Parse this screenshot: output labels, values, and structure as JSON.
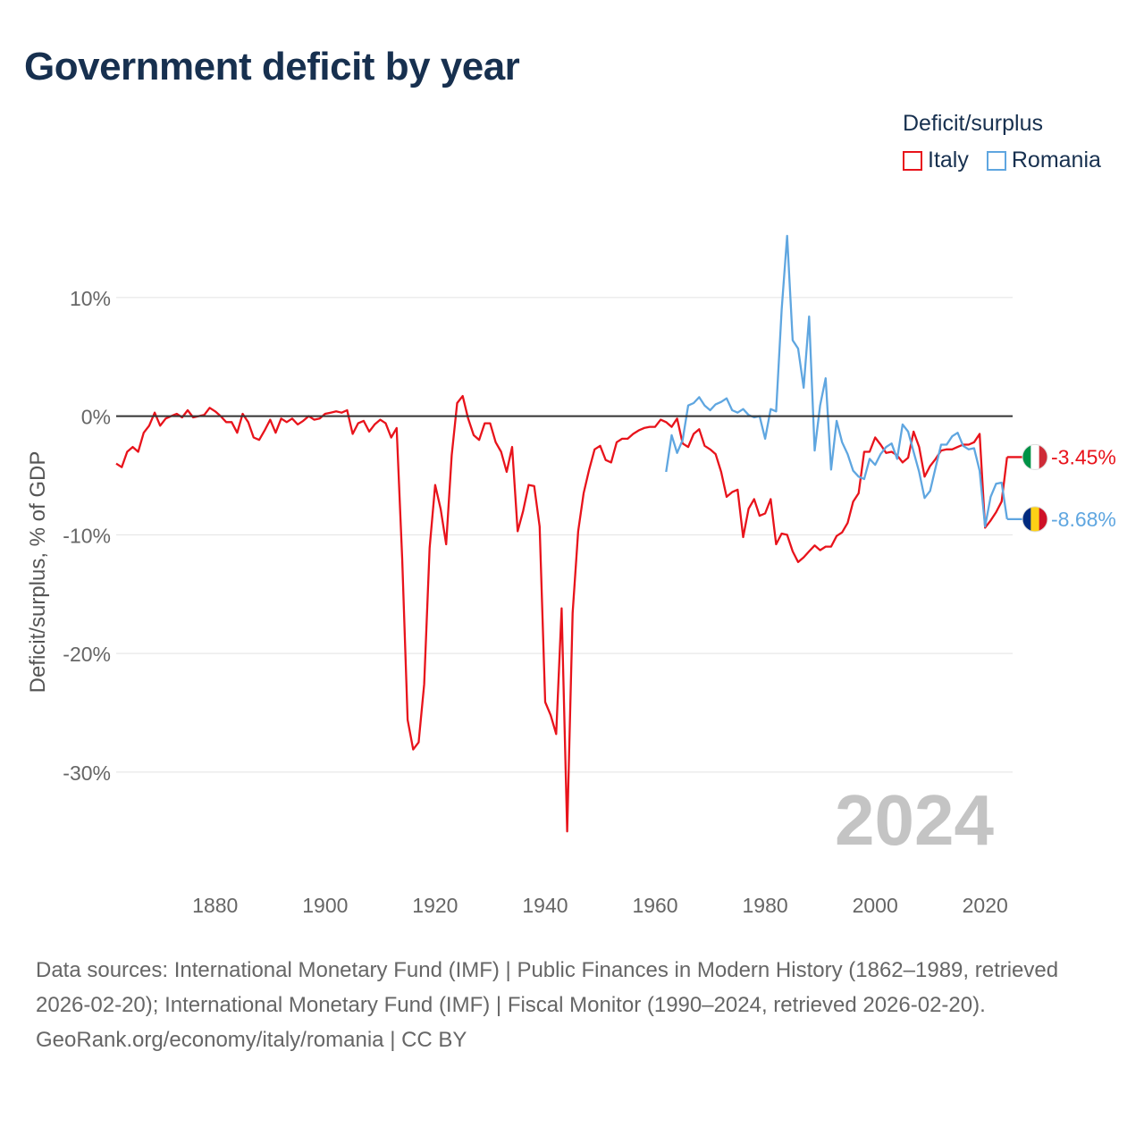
{
  "title": "Government deficit by year",
  "legend": {
    "title": "Deficit/surplus",
    "items": [
      {
        "label": "Italy",
        "color": "#e8131b"
      },
      {
        "label": "Romania",
        "color": "#5fa6e0"
      }
    ]
  },
  "footer": {
    "sources": "Data sources: International Monetary Fund (IMF) | Public Finances in Modern History (1862–1989, retrieved 2026-02-20); International Monetary Fund (IMF) | Fiscal Monitor (1990–2024, retrieved 2026-02-20).",
    "credit": "GeoRank.org/economy/italy/romania | CC BY"
  },
  "chart_data": {
    "type": "line",
    "title": "Government deficit by year",
    "xlabel": "",
    "ylabel": "Deficit/surplus, % of GDP",
    "xlim": [
      1862,
      2025
    ],
    "ylim": [
      -38,
      17
    ],
    "x_ticks": [
      1880,
      1900,
      1920,
      1940,
      1960,
      1980,
      2000,
      2020
    ],
    "y_ticks": [
      10,
      0,
      -10,
      -20,
      -30
    ],
    "y_tick_labels": [
      "10%",
      "0%",
      "-10%",
      "-20%",
      "-30%"
    ],
    "year_label": "2024",
    "end_labels": [
      {
        "series": "Italy",
        "text": "-3.45%",
        "value": -3.45,
        "color": "#e8131b"
      },
      {
        "series": "Romania",
        "text": "-8.68%",
        "value": -8.68,
        "color": "#5fa6e0"
      }
    ],
    "series": [
      {
        "name": "Italy",
        "color": "#e8131b",
        "points": [
          [
            1862,
            -4.0
          ],
          [
            1863,
            -4.3
          ],
          [
            1864,
            -3.0
          ],
          [
            1865,
            -2.6
          ],
          [
            1866,
            -3.0
          ],
          [
            1867,
            -1.4
          ],
          [
            1868,
            -0.8
          ],
          [
            1869,
            0.3
          ],
          [
            1870,
            -0.8
          ],
          [
            1871,
            -0.2
          ],
          [
            1872,
            0.0
          ],
          [
            1873,
            0.2
          ],
          [
            1874,
            -0.1
          ],
          [
            1875,
            0.5
          ],
          [
            1876,
            -0.1
          ],
          [
            1877,
            0.0
          ],
          [
            1878,
            0.1
          ],
          [
            1879,
            0.7
          ],
          [
            1880,
            0.4
          ],
          [
            1881,
            0.0
          ],
          [
            1882,
            -0.5
          ],
          [
            1883,
            -0.5
          ],
          [
            1884,
            -1.4
          ],
          [
            1885,
            0.2
          ],
          [
            1886,
            -0.5
          ],
          [
            1887,
            -1.8
          ],
          [
            1888,
            -2.0
          ],
          [
            1889,
            -1.2
          ],
          [
            1890,
            -0.3
          ],
          [
            1891,
            -1.4
          ],
          [
            1892,
            -0.2
          ],
          [
            1893,
            -0.5
          ],
          [
            1894,
            -0.2
          ],
          [
            1895,
            -0.7
          ],
          [
            1896,
            -0.4
          ],
          [
            1897,
            0.0
          ],
          [
            1898,
            -0.3
          ],
          [
            1899,
            -0.2
          ],
          [
            1900,
            0.2
          ],
          [
            1901,
            0.3
          ],
          [
            1902,
            0.4
          ],
          [
            1903,
            0.3
          ],
          [
            1904,
            0.5
          ],
          [
            1905,
            -1.5
          ],
          [
            1906,
            -0.6
          ],
          [
            1907,
            -0.4
          ],
          [
            1908,
            -1.3
          ],
          [
            1909,
            -0.7
          ],
          [
            1910,
            -0.3
          ],
          [
            1911,
            -0.6
          ],
          [
            1912,
            -1.8
          ],
          [
            1913,
            -1.0
          ],
          [
            1914,
            -12.0
          ],
          [
            1915,
            -25.6
          ],
          [
            1916,
            -28.1
          ],
          [
            1917,
            -27.5
          ],
          [
            1918,
            -22.6
          ],
          [
            1919,
            -11.1
          ],
          [
            1920,
            -5.8
          ],
          [
            1921,
            -7.8
          ],
          [
            1922,
            -10.8
          ],
          [
            1923,
            -3.3
          ],
          [
            1924,
            1.1
          ],
          [
            1925,
            1.7
          ],
          [
            1926,
            -0.2
          ],
          [
            1927,
            -1.6
          ],
          [
            1928,
            -2.0
          ],
          [
            1929,
            -0.6
          ],
          [
            1930,
            -0.6
          ],
          [
            1931,
            -2.2
          ],
          [
            1932,
            -3.0
          ],
          [
            1933,
            -4.7
          ],
          [
            1934,
            -2.6
          ],
          [
            1935,
            -9.7
          ],
          [
            1936,
            -8.0
          ],
          [
            1937,
            -5.8
          ],
          [
            1938,
            -5.9
          ],
          [
            1939,
            -9.3
          ],
          [
            1940,
            -24.1
          ],
          [
            1941,
            -25.2
          ],
          [
            1942,
            -26.8
          ],
          [
            1943,
            -16.2
          ],
          [
            1944,
            -35.0
          ],
          [
            1945,
            -16.6
          ],
          [
            1946,
            -9.7
          ],
          [
            1947,
            -6.5
          ],
          [
            1948,
            -4.5
          ],
          [
            1949,
            -2.8
          ],
          [
            1950,
            -2.5
          ],
          [
            1951,
            -3.7
          ],
          [
            1952,
            -3.9
          ],
          [
            1953,
            -2.2
          ],
          [
            1954,
            -1.9
          ],
          [
            1955,
            -1.9
          ],
          [
            1956,
            -1.5
          ],
          [
            1957,
            -1.2
          ],
          [
            1958,
            -1.0
          ],
          [
            1959,
            -0.9
          ],
          [
            1960,
            -0.9
          ],
          [
            1961,
            -0.3
          ],
          [
            1962,
            -0.5
          ],
          [
            1963,
            -0.9
          ],
          [
            1964,
            -0.2
          ],
          [
            1965,
            -2.3
          ],
          [
            1966,
            -2.6
          ],
          [
            1967,
            -1.5
          ],
          [
            1968,
            -1.1
          ],
          [
            1969,
            -2.5
          ],
          [
            1970,
            -2.8
          ],
          [
            1971,
            -3.2
          ],
          [
            1972,
            -4.7
          ],
          [
            1973,
            -6.8
          ],
          [
            1974,
            -6.4
          ],
          [
            1975,
            -6.2
          ],
          [
            1976,
            -10.2
          ],
          [
            1977,
            -7.8
          ],
          [
            1978,
            -7.0
          ],
          [
            1979,
            -8.4
          ],
          [
            1980,
            -8.2
          ],
          [
            1981,
            -7.0
          ],
          [
            1982,
            -10.8
          ],
          [
            1983,
            -9.9
          ],
          [
            1984,
            -10.0
          ],
          [
            1985,
            -11.4
          ],
          [
            1986,
            -12.3
          ],
          [
            1987,
            -11.9
          ],
          [
            1988,
            -11.4
          ],
          [
            1989,
            -10.9
          ],
          [
            1990,
            -11.3
          ],
          [
            1991,
            -11.0
          ],
          [
            1992,
            -11.0
          ],
          [
            1993,
            -10.1
          ],
          [
            1994,
            -9.8
          ],
          [
            1995,
            -9.0
          ],
          [
            1996,
            -7.2
          ],
          [
            1997,
            -6.5
          ],
          [
            1998,
            -3.0
          ],
          [
            1999,
            -3.0
          ],
          [
            2000,
            -1.8
          ],
          [
            2001,
            -2.4
          ],
          [
            2002,
            -3.1
          ],
          [
            2003,
            -3.0
          ],
          [
            2004,
            -3.3
          ],
          [
            2005,
            -3.9
          ],
          [
            2006,
            -3.5
          ],
          [
            2007,
            -1.3
          ],
          [
            2008,
            -2.6
          ],
          [
            2009,
            -5.1
          ],
          [
            2010,
            -4.2
          ],
          [
            2011,
            -3.6
          ],
          [
            2012,
            -2.9
          ],
          [
            2013,
            -2.8
          ],
          [
            2014,
            -2.8
          ],
          [
            2015,
            -2.6
          ],
          [
            2016,
            -2.4
          ],
          [
            2017,
            -2.4
          ],
          [
            2018,
            -2.2
          ],
          [
            2019,
            -1.5
          ],
          [
            2020,
            -9.4
          ],
          [
            2021,
            -8.8
          ],
          [
            2022,
            -8.1
          ],
          [
            2023,
            -7.2
          ],
          [
            2024,
            -3.45
          ]
        ]
      },
      {
        "name": "Romania",
        "color": "#5fa6e0",
        "points": [
          [
            1962,
            -4.7
          ],
          [
            1963,
            -1.6
          ],
          [
            1964,
            -3.1
          ],
          [
            1965,
            -2.0
          ],
          [
            1966,
            0.9
          ],
          [
            1967,
            1.1
          ],
          [
            1968,
            1.6
          ],
          [
            1969,
            0.9
          ],
          [
            1970,
            0.5
          ],
          [
            1971,
            1.0
          ],
          [
            1972,
            1.2
          ],
          [
            1973,
            1.5
          ],
          [
            1974,
            0.5
          ],
          [
            1975,
            0.3
          ],
          [
            1976,
            0.6
          ],
          [
            1977,
            0.1
          ],
          [
            1978,
            -0.1
          ],
          [
            1979,
            0.0
          ],
          [
            1980,
            -1.9
          ],
          [
            1981,
            0.6
          ],
          [
            1982,
            0.4
          ],
          [
            1983,
            9.0
          ],
          [
            1984,
            15.2
          ],
          [
            1985,
            6.4
          ],
          [
            1986,
            5.7
          ],
          [
            1987,
            2.4
          ],
          [
            1988,
            8.4
          ],
          [
            1989,
            -2.9
          ],
          [
            1990,
            0.9
          ],
          [
            1991,
            3.2
          ],
          [
            1992,
            -4.5
          ],
          [
            1993,
            -0.4
          ],
          [
            1994,
            -2.2
          ],
          [
            1995,
            -3.2
          ],
          [
            1996,
            -4.6
          ],
          [
            1997,
            -5.1
          ],
          [
            1998,
            -5.3
          ],
          [
            1999,
            -3.6
          ],
          [
            2000,
            -4.1
          ],
          [
            2001,
            -3.2
          ],
          [
            2002,
            -2.6
          ],
          [
            2003,
            -2.3
          ],
          [
            2004,
            -3.6
          ],
          [
            2005,
            -0.7
          ],
          [
            2006,
            -1.3
          ],
          [
            2007,
            -3.0
          ],
          [
            2008,
            -4.7
          ],
          [
            2009,
            -6.9
          ],
          [
            2010,
            -6.3
          ],
          [
            2011,
            -4.3
          ],
          [
            2012,
            -2.4
          ],
          [
            2013,
            -2.4
          ],
          [
            2014,
            -1.7
          ],
          [
            2015,
            -1.4
          ],
          [
            2016,
            -2.5
          ],
          [
            2017,
            -2.8
          ],
          [
            2018,
            -2.7
          ],
          [
            2019,
            -4.6
          ],
          [
            2020,
            -9.3
          ],
          [
            2021,
            -6.8
          ],
          [
            2022,
            -5.7
          ],
          [
            2023,
            -5.6
          ],
          [
            2024,
            -8.68
          ]
        ]
      }
    ]
  }
}
